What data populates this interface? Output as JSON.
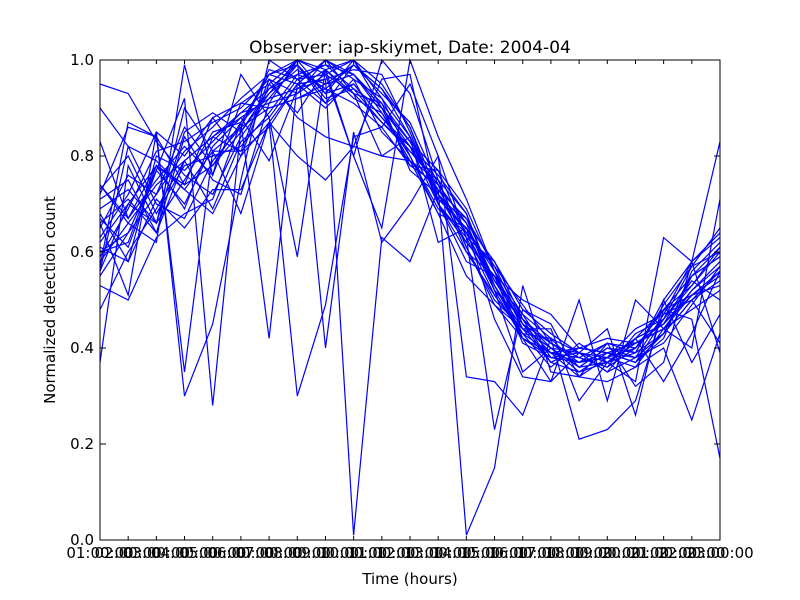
{
  "chart_data": {
    "type": "line",
    "title": "Observer: iap-skiymet, Date: 2004-04",
    "xlabel": "Time (hours)",
    "ylabel": "Normalized detection count",
    "xlim": [
      1,
      23
    ],
    "ylim": [
      0,
      1
    ],
    "x_tick_labels": [
      "01:00:00",
      "02:00:00",
      "03:00:00",
      "04:00:00",
      "05:00:00",
      "06:00:00",
      "07:00:00",
      "08:00:00",
      "09:00:00",
      "10:00:00",
      "11:00:00",
      "12:00:00",
      "13:00:00",
      "14:00:00",
      "15:00:00",
      "16:00:00",
      "17:00:00",
      "18:00:00",
      "19:00:00",
      "20:00:00",
      "21:00:00",
      "22:00:00",
      "23:00:00"
    ],
    "y_tick_labels": [
      "0.0",
      "0.2",
      "0.4",
      "0.6",
      "0.8",
      "1.0"
    ],
    "grid": false,
    "line_color": "#0000ff",
    "x_hours": [
      1,
      2,
      3,
      4,
      5,
      6,
      7,
      8,
      9,
      10,
      11,
      12,
      13,
      14,
      15,
      16,
      17,
      18,
      19,
      20,
      21,
      22,
      23
    ],
    "series": [
      {
        "values": [
          0.37,
          0.78,
          0.66,
          0.75,
          0.85,
          0.87,
          0.97,
          0.99,
          0.93,
          1.0,
          0.95,
          0.86,
          0.72,
          0.66,
          0.53,
          0.43,
          0.39,
          0.37,
          0.38,
          0.4,
          0.48,
          0.51,
          0.53
        ]
      },
      {
        "values": [
          0.48,
          0.6,
          0.69,
          0.79,
          0.84,
          0.89,
          0.94,
          0.97,
          0.99,
          0.94,
          0.9,
          0.82,
          0.7,
          0.62,
          0.55,
          0.46,
          0.4,
          0.36,
          0.37,
          0.39,
          0.43,
          0.5,
          0.56
        ]
      },
      {
        "values": [
          0.62,
          0.7,
          0.78,
          0.73,
          0.81,
          0.86,
          0.9,
          0.92,
          0.95,
          0.97,
          0.89,
          0.79,
          0.73,
          0.64,
          0.52,
          0.42,
          0.38,
          0.39,
          0.35,
          0.42,
          0.45,
          0.55,
          0.59
        ]
      },
      {
        "values": [
          0.58,
          0.66,
          0.74,
          0.79,
          0.69,
          0.83,
          0.88,
          0.96,
          0.91,
          0.99,
          0.94,
          0.84,
          0.71,
          0.67,
          0.57,
          0.49,
          0.41,
          0.37,
          0.39,
          0.38,
          0.47,
          0.58,
          0.63
        ]
      },
      {
        "values": [
          0.71,
          0.75,
          0.64,
          0.84,
          0.75,
          0.72,
          0.91,
          1.0,
          0.97,
          0.93,
          0.87,
          0.81,
          0.75,
          0.61,
          0.5,
          0.44,
          0.37,
          0.4,
          0.42,
          0.41,
          0.44,
          0.48,
          0.52
        ]
      },
      {
        "values": [
          0.9,
          0.82,
          0.79,
          0.73,
          0.68,
          0.8,
          0.87,
          0.95,
          1.0,
          0.96,
          0.92,
          0.8,
          0.68,
          0.65,
          0.54,
          0.45,
          0.39,
          0.38,
          0.36,
          0.43,
          0.46,
          0.53,
          0.6
        ]
      },
      {
        "values": [
          0.63,
          0.72,
          0.85,
          0.8,
          0.88,
          0.91,
          0.95,
          0.89,
          0.98,
          1.0,
          0.9,
          0.83,
          0.77,
          0.69,
          0.56,
          0.47,
          0.42,
          0.36,
          0.4,
          0.38,
          0.41,
          0.49,
          0.57
        ]
      },
      {
        "values": [
          0.55,
          0.64,
          0.72,
          0.86,
          0.78,
          0.85,
          0.93,
          0.98,
          0.94,
          0.91,
          0.86,
          0.78,
          0.74,
          0.6,
          0.51,
          0.43,
          0.36,
          0.41,
          0.37,
          0.42,
          0.48,
          0.55,
          0.61
        ]
      },
      {
        "values": [
          0.67,
          0.61,
          0.77,
          0.7,
          0.82,
          0.88,
          0.79,
          0.94,
          0.96,
          0.98,
          0.97,
          0.85,
          0.7,
          0.63,
          0.58,
          0.48,
          0.43,
          0.39,
          0.38,
          0.36,
          0.44,
          0.52,
          0.58
        ]
      },
      {
        "values": [
          0.95,
          0.93,
          0.83,
          0.76,
          0.72,
          0.84,
          0.92,
          0.99,
          0.91,
          0.95,
          0.88,
          0.82,
          0.76,
          0.68,
          0.53,
          0.44,
          0.4,
          0.35,
          0.39,
          0.41,
          0.45,
          0.51,
          0.55
        ]
      },
      {
        "values": [
          0.59,
          0.69,
          0.81,
          0.83,
          0.87,
          0.9,
          0.96,
          0.93,
          1.0,
          0.97,
          0.91,
          0.77,
          0.72,
          0.62,
          0.55,
          0.41,
          0.38,
          0.37,
          0.41,
          0.39,
          0.49,
          0.57,
          0.65
        ]
      },
      {
        "values": [
          0.73,
          0.8,
          0.68,
          0.78,
          0.8,
          0.82,
          0.89,
          0.97,
          0.95,
          0.99,
          0.93,
          0.87,
          0.74,
          0.66,
          0.52,
          0.46,
          0.41,
          0.38,
          0.36,
          0.4,
          0.46,
          0.54,
          0.5
        ]
      },
      {
        "values": [
          0.53,
          0.5,
          0.63,
          0.68,
          0.71,
          0.87,
          0.93,
          1.0,
          0.98,
          0.92,
          0.89,
          0.8,
          0.69,
          0.64,
          0.57,
          0.45,
          0.37,
          0.4,
          0.39,
          0.37,
          0.42,
          0.56,
          0.62
        ]
      },
      {
        "values": [
          0.65,
          0.76,
          0.72,
          0.81,
          0.86,
          0.92,
          0.97,
          0.95,
          0.9,
          0.96,
          0.85,
          0.79,
          0.75,
          0.61,
          0.49,
          0.42,
          0.39,
          0.34,
          0.38,
          0.44,
          0.47,
          0.5,
          0.54
        ]
      },
      {
        "values": [
          0.61,
          0.58,
          0.8,
          0.77,
          0.83,
          0.89,
          0.91,
          0.93,
          0.97,
          1.0,
          0.92,
          0.84,
          0.71,
          0.65,
          0.56,
          0.44,
          0.4,
          0.36,
          0.4,
          0.39,
          0.5,
          0.58,
          0.64
        ]
      },
      {
        "values": [
          0.69,
          0.73,
          0.66,
          0.85,
          0.89,
          0.85,
          0.94,
          0.99,
          0.92,
          0.94,
          0.87,
          0.82,
          0.73,
          0.67,
          0.54,
          0.47,
          0.38,
          0.37,
          0.38,
          0.42,
          0.45,
          0.52,
          0.57
        ]
      },
      {
        "values": [
          0.56,
          0.82,
          0.7,
          0.67,
          0.79,
          0.86,
          0.98,
          0.96,
          0.99,
          0.97,
          0.9,
          0.78,
          0.77,
          0.63,
          0.51,
          0.43,
          0.42,
          0.39,
          0.35,
          0.38,
          0.43,
          0.55,
          0.59
        ]
      },
      {
        "values": [
          0.74,
          0.67,
          0.75,
          0.82,
          0.76,
          0.91,
          0.9,
          0.92,
          0.94,
          0.99,
          0.94,
          0.86,
          0.7,
          0.6,
          0.55,
          0.45,
          0.41,
          0.38,
          0.41,
          0.4,
          0.48,
          0.53,
          0.61
        ]
      },
      {
        "values": [
          0.6,
          0.62,
          0.78,
          0.74,
          0.88,
          0.8,
          0.95,
          1.0,
          0.93,
          0.95,
          0.88,
          0.81,
          0.74,
          0.66,
          0.58,
          0.46,
          0.37,
          0.35,
          0.37,
          0.41,
          0.44,
          0.51,
          0.56
        ]
      },
      {
        "values": [
          0.66,
          0.71,
          0.64,
          0.79,
          0.84,
          0.88,
          0.92,
          0.94,
          0.98,
          0.93,
          0.91,
          0.83,
          0.72,
          0.64,
          0.53,
          0.42,
          0.39,
          0.4,
          0.39,
          0.37,
          0.46,
          0.57,
          0.6
        ]
      },
      {
        "values": [
          0.57,
          0.87,
          0.84,
          0.35,
          0.81,
          0.81,
          0.96,
          0.88,
          0.84,
          0.82,
          0.8,
          0.79,
          0.68,
          0.55,
          0.49,
          0.44,
          0.44,
          0.29,
          0.37,
          0.33,
          0.63,
          0.58,
          0.83
        ]
      },
      {
        "values": [
          0.66,
          0.51,
          0.85,
          0.3,
          0.45,
          0.75,
          1.0,
          0.96,
          0.97,
          0.8,
          1.0,
          0.93,
          0.75,
          0.68,
          0.52,
          0.35,
          0.4,
          0.39,
          0.37,
          0.42,
          0.33,
          0.43,
          0.56
        ]
      },
      {
        "values": [
          0.6,
          0.64,
          0.77,
          0.92,
          0.28,
          0.86,
          0.97,
          1.0,
          0.4,
          0.85,
          0.62,
          0.7,
          0.8,
          0.63,
          0.23,
          0.48,
          0.45,
          0.34,
          0.33,
          0.36,
          0.4,
          0.25,
          0.43
        ]
      },
      {
        "values": [
          0.72,
          0.86,
          0.84,
          0.74,
          0.78,
          0.87,
          0.42,
          0.95,
          1.0,
          0.93,
          0.8,
          0.84,
          0.62,
          0.65,
          0.46,
          0.34,
          0.33,
          0.5,
          0.29,
          0.5,
          0.44,
          0.4,
          0.71
        ]
      },
      {
        "values": [
          0.74,
          0.66,
          0.62,
          0.99,
          0.76,
          0.97,
          0.88,
          0.59,
          0.98,
          0.8,
          0.65,
          1.0,
          0.84,
          0.71,
          0.56,
          0.42,
          0.33,
          0.39,
          0.44,
          0.26,
          0.5,
          0.37,
          0.47
        ]
      },
      {
        "values": [
          0.83,
          0.67,
          0.78,
          0.69,
          0.84,
          0.81,
          0.86,
          0.95,
          0.96,
          0.01,
          0.63,
          0.58,
          0.73,
          0.01,
          0.15,
          0.53,
          0.35,
          0.34,
          0.41,
          0.32,
          0.37,
          0.58,
          0.39
        ]
      },
      {
        "values": [
          0.56,
          0.7,
          0.66,
          0.9,
          0.81,
          0.68,
          0.87,
          0.3,
          0.49,
          0.84,
          0.86,
          0.95,
          0.8,
          0.34,
          0.33,
          0.26,
          0.42,
          0.21,
          0.23,
          0.29,
          0.48,
          0.46,
          0.17
        ]
      },
      {
        "values": [
          0.68,
          0.58,
          0.71,
          0.65,
          0.73,
          0.73,
          0.87,
          0.8,
          0.75,
          0.82,
          0.96,
          0.97,
          0.7,
          0.58,
          0.55,
          0.5,
          0.47,
          0.4,
          0.39,
          0.37,
          0.43,
          0.5,
          0.41
        ]
      }
    ]
  }
}
